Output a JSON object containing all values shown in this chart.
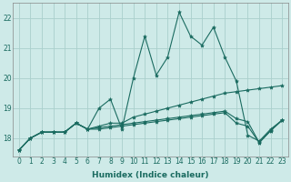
{
  "xlabel": "Humidex (Indice chaleur)",
  "bg_color": "#ceeae8",
  "grid_color": "#aacfcc",
  "line_color": "#1a6b60",
  "x_ticks": [
    0,
    1,
    2,
    3,
    4,
    5,
    6,
    7,
    8,
    9,
    10,
    11,
    12,
    13,
    14,
    15,
    16,
    17,
    18,
    19,
    20,
    21,
    22,
    23
  ],
  "y_ticks": [
    18,
    19,
    20,
    21,
    22
  ],
  "ylim": [
    17.4,
    22.5
  ],
  "xlim": [
    -0.5,
    23.5
  ],
  "lines": [
    [
      17.6,
      18.0,
      18.2,
      18.2,
      18.2,
      18.5,
      18.3,
      19.0,
      19.3,
      18.3,
      20.0,
      21.4,
      20.1,
      20.7,
      22.2,
      21.4,
      21.1,
      21.7,
      20.7,
      19.9,
      18.1,
      17.9,
      18.3,
      18.6
    ],
    [
      17.6,
      18.0,
      18.2,
      18.2,
      18.2,
      18.5,
      18.3,
      18.4,
      18.5,
      18.5,
      18.7,
      18.8,
      18.9,
      19.0,
      19.1,
      19.2,
      19.3,
      19.4,
      19.5,
      19.55,
      19.6,
      19.65,
      19.7,
      19.75
    ],
    [
      17.6,
      18.0,
      18.2,
      18.2,
      18.2,
      18.5,
      18.3,
      18.35,
      18.4,
      18.45,
      18.5,
      18.55,
      18.6,
      18.65,
      18.7,
      18.75,
      18.8,
      18.85,
      18.9,
      18.65,
      18.55,
      17.85,
      18.25,
      18.6
    ],
    [
      17.6,
      18.0,
      18.2,
      18.2,
      18.2,
      18.5,
      18.3,
      18.3,
      18.35,
      18.4,
      18.45,
      18.5,
      18.55,
      18.6,
      18.65,
      18.7,
      18.75,
      18.8,
      18.85,
      18.5,
      18.4,
      17.85,
      18.25,
      18.6
    ]
  ],
  "marker": "*",
  "markersize": 3,
  "linewidth": 0.8,
  "tick_fontsize": 5.5,
  "xlabel_fontsize": 6.5
}
